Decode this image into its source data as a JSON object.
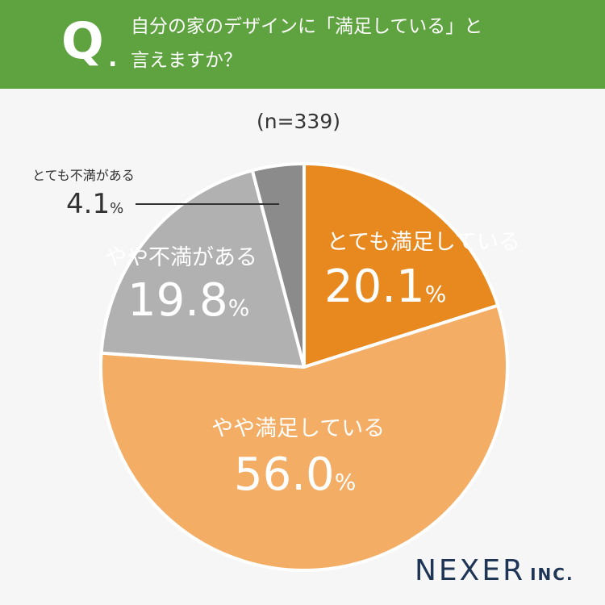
{
  "question": {
    "mark": "Q",
    "dot": ".",
    "line1": "自分の家のデザインに「満足している」と",
    "line2": "言えますか？"
  },
  "sample_label": "(n=339)",
  "chart_data": {
    "type": "pie",
    "title": "自分の家のデザインに「満足している」と言えますか？",
    "sample_size": "n=339",
    "start": "12 o'clock, clockwise",
    "slices": [
      {
        "label": "とても満足している",
        "value": 20.1,
        "display": "20.1",
        "unit": "%",
        "color": "#e8891f"
      },
      {
        "label": "やや満足している",
        "value": 56.0,
        "display": "56.0",
        "unit": "%",
        "color": "#f4ad64"
      },
      {
        "label": "やや不満がある",
        "value": 19.8,
        "display": "19.8",
        "unit": "%",
        "color": "#b1b1b1"
      },
      {
        "label": "とても不満がある",
        "value": 4.1,
        "display": "4.1",
        "unit": "%",
        "color": "#8b8b8b"
      }
    ],
    "separator_color": "#ffffff"
  },
  "logo": {
    "name": "NEXER",
    "suffix": "INC."
  }
}
